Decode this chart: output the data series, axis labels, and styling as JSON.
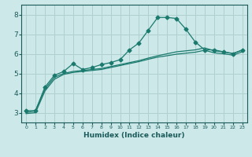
{
  "xlabel": "Humidex (Indice chaleur)",
  "ylabel": "",
  "xlim": [
    -0.5,
    23.5
  ],
  "ylim": [
    2.5,
    8.5
  ],
  "yticks": [
    3,
    4,
    5,
    6,
    7,
    8
  ],
  "xticks": [
    0,
    1,
    2,
    3,
    4,
    5,
    6,
    7,
    8,
    9,
    10,
    11,
    12,
    13,
    14,
    15,
    16,
    17,
    18,
    19,
    20,
    21,
    22,
    23
  ],
  "background_color": "#cce8e8",
  "grid_color": "#b0d0d0",
  "line_color": "#1a7a6e",
  "text_color": "#1a5a5a",
  "line1_x": [
    0,
    1,
    2,
    3,
    4,
    5,
    6,
    7,
    8,
    9,
    10,
    11,
    12,
    13,
    14,
    15,
    16,
    17,
    18,
    19,
    20,
    21,
    22,
    23
  ],
  "line1_y": [
    3.1,
    3.1,
    4.3,
    4.9,
    5.1,
    5.5,
    5.2,
    5.3,
    5.45,
    5.55,
    5.7,
    6.2,
    6.55,
    7.2,
    7.85,
    7.85,
    7.8,
    7.25,
    6.6,
    6.2,
    6.2,
    6.1,
    6.0,
    6.2
  ],
  "line2_x": [
    0,
    1,
    2,
    3,
    4,
    5,
    6,
    7,
    8,
    9,
    10,
    11,
    12,
    13,
    14,
    15,
    16,
    17,
    18,
    19,
    20,
    21,
    22,
    23
  ],
  "line2_y": [
    3.0,
    3.1,
    4.2,
    4.8,
    5.0,
    5.1,
    5.15,
    5.2,
    5.25,
    5.35,
    5.45,
    5.55,
    5.65,
    5.78,
    5.9,
    6.0,
    6.1,
    6.15,
    6.2,
    6.3,
    6.15,
    6.1,
    6.02,
    6.18
  ],
  "line3_x": [
    0,
    1,
    2,
    3,
    4,
    5,
    6,
    7,
    8,
    9,
    10,
    11,
    12,
    13,
    14,
    15,
    16,
    17,
    18,
    19,
    20,
    21,
    22,
    23
  ],
  "line3_y": [
    2.95,
    3.0,
    4.1,
    4.7,
    4.95,
    5.05,
    5.1,
    5.15,
    5.2,
    5.3,
    5.4,
    5.5,
    5.6,
    5.72,
    5.83,
    5.9,
    5.98,
    6.03,
    6.08,
    6.18,
    6.05,
    6.0,
    5.93,
    6.1
  ]
}
